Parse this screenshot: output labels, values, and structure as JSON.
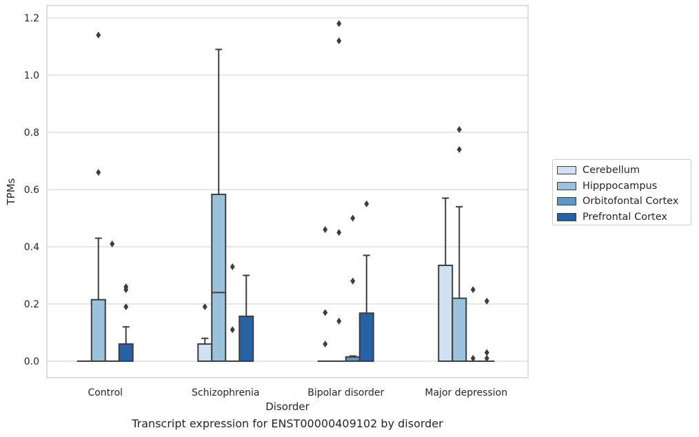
{
  "chart_data": {
    "type": "box",
    "xlabel": "Disorder",
    "ylabel": "TPMs",
    "caption": "Transcript expression for ENST00000409102 by disorder",
    "ylim": [
      -0.057,
      1.24
    ],
    "yticks": [
      "0.0",
      "0.2",
      "0.4",
      "0.6",
      "0.8",
      "1.0",
      "1.2"
    ],
    "grid": true,
    "legend_position": "right",
    "categories": [
      "Control",
      "Schizophrenia",
      "Bipolar disorder",
      "Major depression"
    ],
    "series": [
      {
        "name": "Cerebellum",
        "color": "#d0e1f2",
        "boxes": [
          {
            "q1": 0,
            "median": 0,
            "q3": 0,
            "whisker_low": 0,
            "whisker_high": 0,
            "outliers": []
          },
          {
            "q1": 0,
            "median": 0,
            "q3": 0.06,
            "whisker_low": 0,
            "whisker_high": 0.08,
            "outliers": [
              0.19
            ]
          },
          {
            "q1": 0,
            "median": 0,
            "q3": 0,
            "whisker_low": 0,
            "whisker_high": 0,
            "outliers": [
              0.06,
              0.17,
              0.46
            ]
          },
          {
            "q1": 0,
            "median": 0,
            "q3": 0.335,
            "whisker_low": 0,
            "whisker_high": 0.57,
            "outliers": []
          }
        ]
      },
      {
        "name": "Hipppocampus",
        "color": "#9ac3db",
        "boxes": [
          {
            "q1": 0,
            "median": 0,
            "q3": 0.215,
            "whisker_low": 0,
            "whisker_high": 0.43,
            "outliers": [
              0.66,
              1.14
            ]
          },
          {
            "q1": 0,
            "median": 0.24,
            "q3": 0.583,
            "whisker_low": 0,
            "whisker_high": 1.09,
            "outliers": []
          },
          {
            "q1": 0,
            "median": 0,
            "q3": 0,
            "whisker_low": 0,
            "whisker_high": 0,
            "outliers": [
              0.14,
              0.45,
              1.12,
              1.18
            ]
          },
          {
            "q1": 0,
            "median": 0,
            "q3": 0.22,
            "whisker_low": 0,
            "whisker_high": 0.54,
            "outliers": [
              0.74,
              0.81
            ]
          }
        ]
      },
      {
        "name": "Orbitofontal Cortex",
        "color": "#5a9ac8",
        "boxes": [
          {
            "q1": 0,
            "median": 0,
            "q3": 0,
            "whisker_low": 0,
            "whisker_high": 0,
            "outliers": [
              0.41
            ]
          },
          {
            "q1": 0,
            "median": 0,
            "q3": 0,
            "whisker_low": 0,
            "whisker_high": 0,
            "outliers": [
              0.11,
              0.33
            ]
          },
          {
            "q1": 0,
            "median": 0,
            "q3": 0.015,
            "whisker_low": 0,
            "whisker_high": 0.018,
            "outliers": [
              0.28,
              0.5
            ]
          },
          {
            "q1": 0,
            "median": 0,
            "q3": 0,
            "whisker_low": 0,
            "whisker_high": 0,
            "outliers": [
              0.01,
              0.25
            ]
          }
        ]
      },
      {
        "name": "Prefrontal Cortex",
        "color": "#2563a4",
        "boxes": [
          {
            "q1": 0,
            "median": 0,
            "q3": 0.06,
            "whisker_low": 0,
            "whisker_high": 0.12,
            "outliers": [
              0.19,
              0.25,
              0.26
            ]
          },
          {
            "q1": 0,
            "median": 0,
            "q3": 0.157,
            "whisker_low": 0,
            "whisker_high": 0.3,
            "outliers": []
          },
          {
            "q1": 0,
            "median": 0,
            "q3": 0.168,
            "whisker_low": 0,
            "whisker_high": 0.37,
            "outliers": [
              0.55
            ]
          },
          {
            "q1": 0,
            "median": 0,
            "q3": 0,
            "whisker_low": 0,
            "whisker_high": 0,
            "outliers": [
              0.01,
              0.03,
              0.21
            ]
          }
        ]
      }
    ]
  }
}
